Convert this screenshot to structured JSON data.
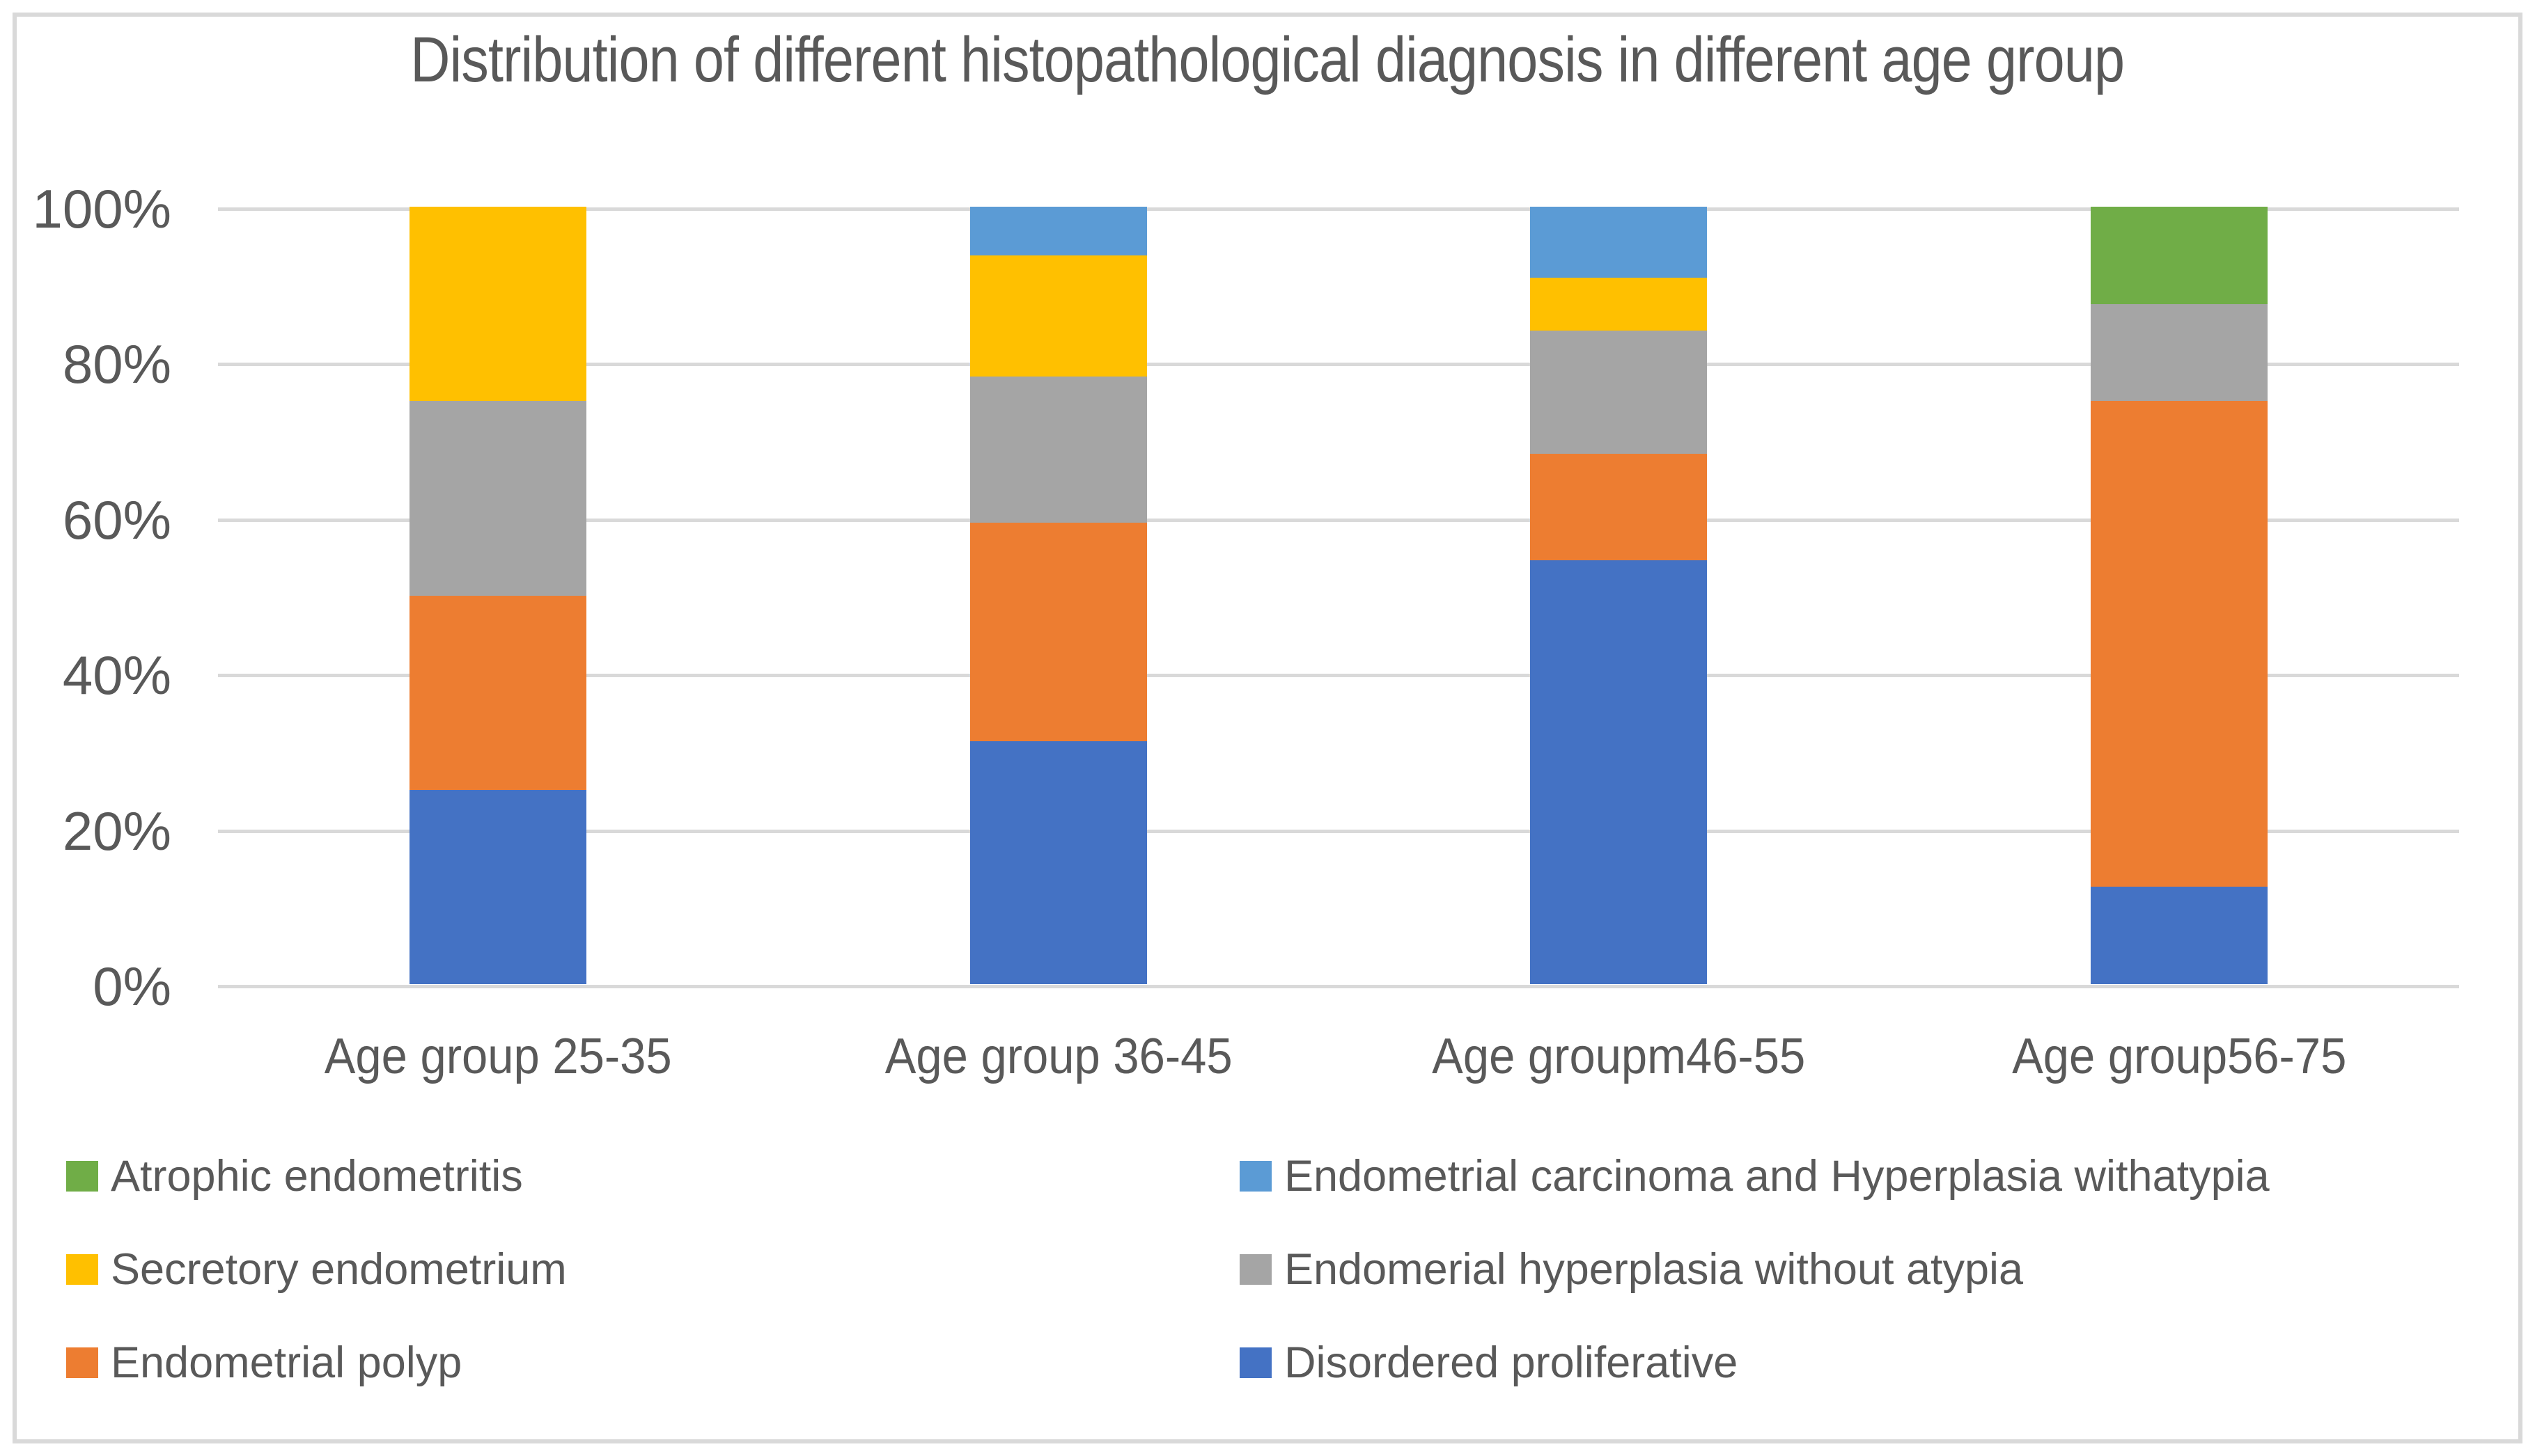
{
  "chart_data": {
    "type": "bar",
    "stacked": true,
    "units": "percent",
    "title": "Distribution of different histopathological diagnosis in different age group",
    "categories": [
      "Age group 25-35",
      "Age group 36-45",
      "Age groupm46-55",
      "Age group56-75"
    ],
    "series": [
      {
        "name": "Disordered proliferative",
        "color": "#4472C4",
        "values": [
          25,
          31.25,
          54.55,
          12.5
        ]
      },
      {
        "name": "Endometrial polyp",
        "color": "#ED7D31",
        "values": [
          25,
          28.125,
          13.63,
          62.5
        ]
      },
      {
        "name": "Endomerial hyperplasia without atypia",
        "color": "#A5A5A5",
        "values": [
          25,
          18.75,
          15.91,
          12.5
        ]
      },
      {
        "name": "Secretory endometrium",
        "color": "#FFC000",
        "values": [
          25,
          15.625,
          6.82,
          0
        ]
      },
      {
        "name": "Endometrial carcinoma and Hyperplasia withatypia",
        "color": "#5B9BD5",
        "values": [
          0,
          6.25,
          9.09,
          0
        ]
      },
      {
        "name": "Atrophic endometritis",
        "color": "#70AD47",
        "values": [
          0,
          0,
          0,
          12.5
        ]
      }
    ],
    "y_axis": {
      "min": 0,
      "max": 100,
      "tick_labels": [
        "0%",
        "20%",
        "40%",
        "60%",
        "80%",
        "100%"
      ],
      "grid": true
    },
    "legend": {
      "position": "bottom",
      "columns": [
        [
          "Atrophic endometritis",
          "Secretory endometrium",
          "Endometrial polyp"
        ],
        [
          "Endometrial carcinoma and Hyperplasia withatypia",
          "Endomerial hyperplasia without atypia",
          "Disordered proliferative"
        ]
      ]
    },
    "colors": {
      "text": "#595959",
      "gridline": "#D9D9D9",
      "border": "#D9D9D9",
      "background": "#FFFFFF"
    }
  }
}
